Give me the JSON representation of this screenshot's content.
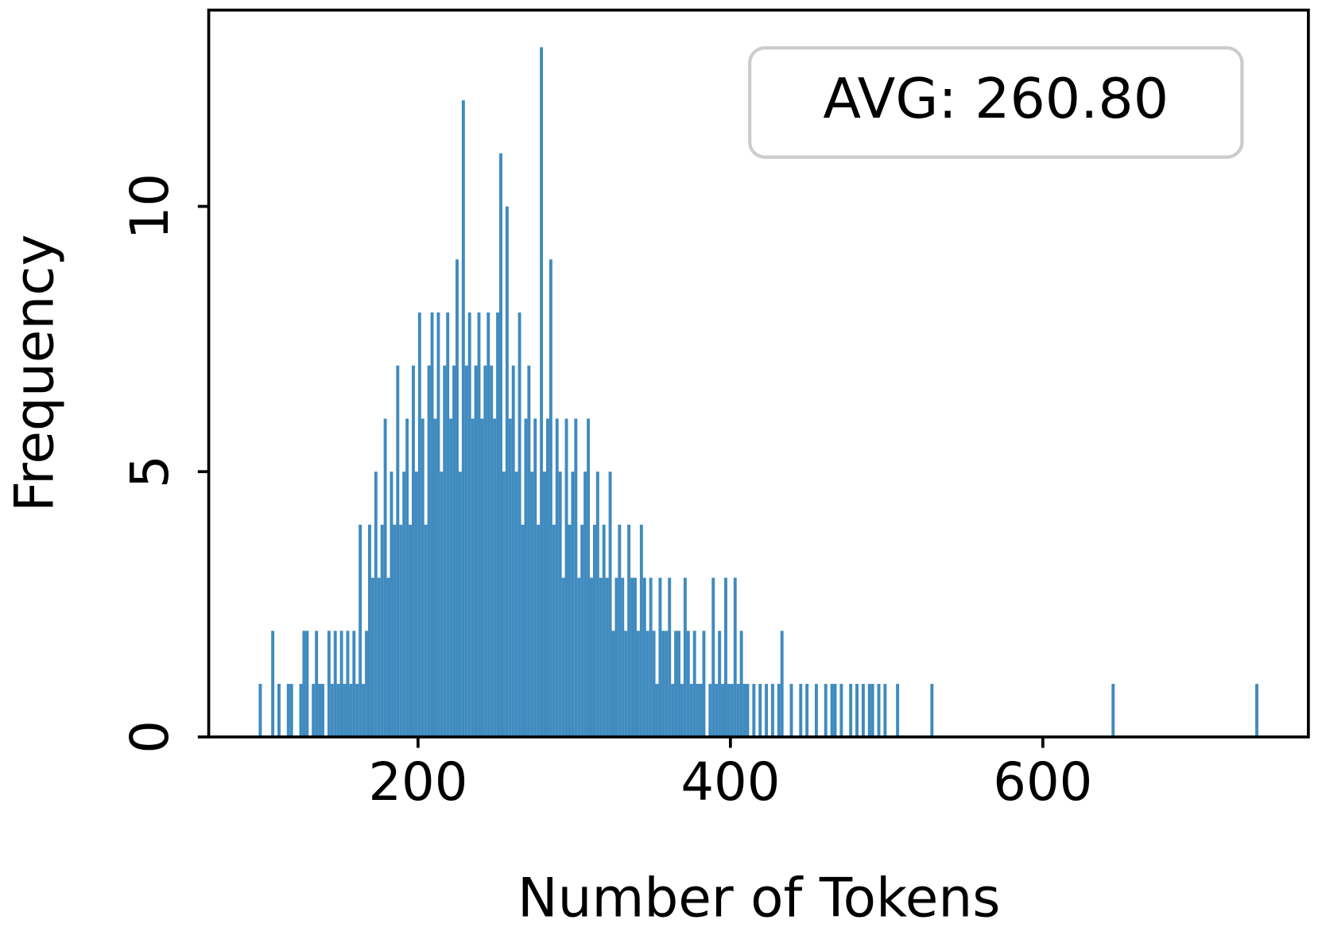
{
  "chart_data": {
    "type": "histogram",
    "xlabel": "Number of Tokens",
    "ylabel": "Frequency",
    "annotation": "AVG: 260.80",
    "color": "#1f77b4",
    "xlim": [
      66,
      770
    ],
    "ylim": [
      0,
      13.7
    ],
    "xticks": [
      200,
      400,
      600
    ],
    "yticks": [
      0,
      5,
      10
    ],
    "bins": [
      98,
      100,
      102,
      104,
      106,
      108,
      110,
      112,
      114,
      116,
      118,
      120,
      122,
      124,
      126,
      128,
      130,
      132,
      134,
      136,
      138,
      140,
      142,
      144,
      146,
      148,
      150,
      152,
      154,
      156,
      158,
      160,
      162,
      164,
      166,
      168,
      170,
      172,
      174,
      176,
      178,
      180,
      182,
      184,
      186,
      188,
      190,
      192,
      194,
      196,
      198,
      200,
      202,
      204,
      206,
      208,
      210,
      212,
      214,
      216,
      218,
      220,
      222,
      224,
      226,
      228,
      230,
      232,
      234,
      236,
      238,
      240,
      242,
      244,
      246,
      248,
      250,
      252,
      254,
      256,
      258,
      260,
      262,
      264,
      266,
      268,
      270,
      272,
      274,
      276,
      278,
      280,
      282,
      284,
      286,
      288,
      290,
      292,
      294,
      296,
      298,
      300,
      302,
      304,
      306,
      308,
      310,
      312,
      314,
      316,
      318,
      320,
      322,
      324,
      326,
      328,
      330,
      332,
      334,
      336,
      338,
      340,
      342,
      344,
      346,
      348,
      350,
      352,
      354,
      356,
      358,
      360,
      362,
      364,
      366,
      368,
      370,
      372,
      374,
      376,
      378,
      380,
      382,
      384,
      386,
      388,
      390,
      392,
      394,
      396,
      398,
      400,
      402,
      404,
      406,
      408,
      410,
      412,
      414,
      416,
      418,
      420,
      422,
      424,
      426,
      428,
      430,
      432,
      434,
      436,
      438,
      440,
      442,
      444,
      446,
      448,
      450,
      452,
      454,
      456,
      458,
      460,
      462,
      464,
      466,
      468,
      470,
      472,
      474,
      476,
      478,
      480,
      482,
      484,
      486,
      488,
      490,
      492,
      494,
      496,
      498,
      500,
      502,
      504,
      506,
      508,
      510,
      512,
      514,
      516,
      518,
      520,
      522,
      524,
      526,
      528,
      530,
      532,
      534,
      536,
      538,
      540,
      542,
      544,
      546,
      548,
      550,
      552,
      554,
      556,
      558,
      560,
      562,
      564,
      566,
      568,
      570,
      572,
      574,
      576,
      578,
      580,
      582,
      584,
      586,
      588,
      590,
      592,
      594,
      596,
      598,
      600,
      602,
      604,
      606,
      608,
      610,
      612,
      614,
      616,
      618,
      620,
      622,
      624,
      626,
      628,
      630,
      632,
      634,
      636,
      638,
      640,
      642,
      644,
      646,
      648,
      650,
      652,
      654,
      656,
      658,
      660,
      662,
      664,
      666,
      668,
      670,
      672,
      674,
      676,
      678,
      680,
      682,
      684,
      686,
      688,
      690,
      692,
      694,
      696,
      698,
      700,
      702,
      704,
      706,
      708,
      710,
      712,
      714,
      716,
      718,
      720,
      722,
      724,
      726,
      728,
      730,
      732,
      734,
      736,
      738
    ],
    "values": [
      1,
      0,
      0,
      0,
      2,
      0,
      1,
      0,
      0,
      1,
      1,
      0,
      0,
      1,
      2,
      2,
      0,
      1,
      2,
      1,
      1,
      0,
      2,
      1,
      2,
      1,
      2,
      1,
      2,
      1,
      2,
      1,
      4,
      1,
      2,
      4,
      3,
      5,
      3,
      4,
      6,
      3,
      5,
      4,
      7,
      4,
      5,
      6,
      4,
      7,
      5,
      8,
      6,
      4,
      7,
      8,
      6,
      8,
      5,
      7,
      8,
      6,
      7,
      9,
      5,
      12,
      7,
      8,
      6,
      7,
      8,
      6,
      7,
      8,
      7,
      6,
      8,
      11,
      5,
      10,
      6,
      7,
      5,
      8,
      4,
      6,
      7,
      5,
      6,
      4,
      13,
      5,
      6,
      9,
      4,
      6,
      5,
      3,
      6,
      4,
      5,
      6,
      3,
      4,
      5,
      6,
      3,
      4,
      5,
      3,
      4,
      3,
      5,
      2,
      3,
      4,
      3,
      2,
      4,
      3,
      3,
      2,
      4,
      3,
      2,
      3,
      2,
      1,
      3,
      2,
      2,
      3,
      1,
      2,
      2,
      1,
      3,
      2,
      1,
      2,
      1,
      1,
      2,
      0,
      1,
      3,
      1,
      2,
      1,
      3,
      1,
      1,
      3,
      1,
      2,
      1,
      1,
      0,
      1,
      0,
      1,
      0,
      1,
      0,
      1,
      0,
      1,
      2,
      0,
      0,
      1,
      0,
      0,
      1,
      0,
      1,
      0,
      0,
      1,
      0,
      0,
      1,
      0,
      1,
      1,
      0,
      1,
      0,
      0,
      1,
      0,
      1,
      0,
      1,
      0,
      1,
      1,
      0,
      1,
      0,
      1,
      0,
      0,
      0,
      1,
      0,
      0,
      0,
      0,
      0,
      0,
      0,
      0,
      0,
      0,
      1,
      0,
      0,
      0,
      0,
      0,
      0,
      0,
      0,
      0,
      0,
      0,
      0,
      0,
      0,
      0,
      0,
      0,
      0,
      0,
      0,
      0,
      0,
      0,
      0,
      0,
      0,
      0,
      0,
      0,
      0,
      0,
      0,
      0,
      0,
      0,
      0,
      0,
      0,
      0,
      0,
      0,
      0,
      0,
      0,
      0,
      0,
      0,
      0,
      0,
      0,
      0,
      0,
      0,
      0,
      0,
      0,
      0,
      1,
      0,
      0,
      0,
      0,
      0,
      0,
      0,
      0,
      0,
      0,
      0,
      0,
      0,
      0,
      0,
      0,
      0,
      0,
      0,
      0,
      0,
      0,
      0,
      0,
      0,
      0,
      0,
      0,
      0,
      0,
      0,
      0,
      0,
      0,
      0,
      0,
      0,
      0,
      0,
      0,
      0,
      0,
      0,
      0,
      0,
      1
    ]
  }
}
